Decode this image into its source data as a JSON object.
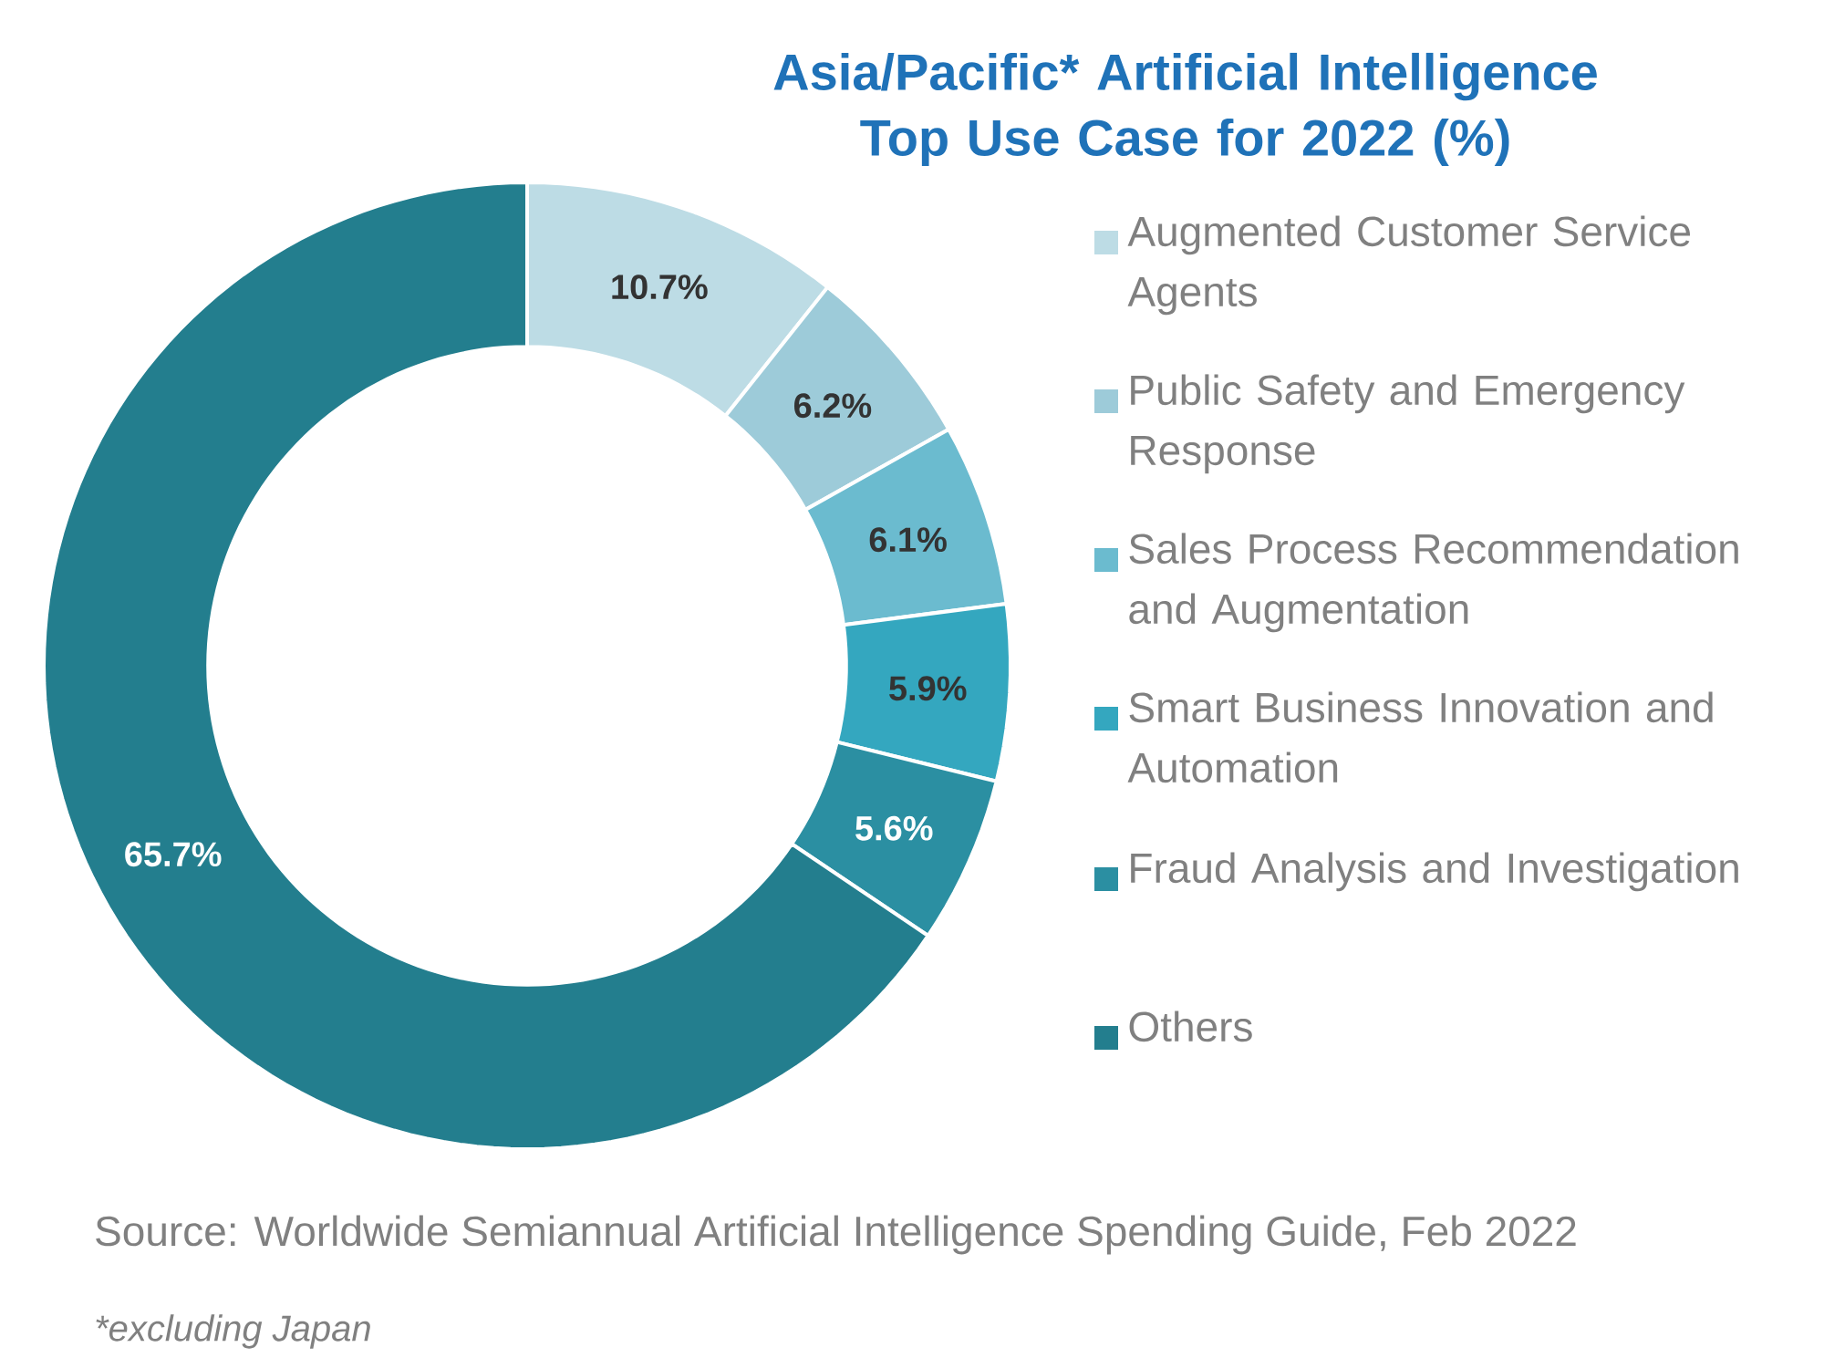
{
  "chart_data": {
    "type": "donut",
    "title": "Asia/Pacific* Artificial Intelligence Top Use Case for 2022 (%)",
    "categories": [
      "Augmented Customer Service Agents",
      "Public Safety and Emergency Response",
      "Sales Process Recommendation and Augmentation",
      "Smart Business Innovation and Automation",
      "Fraud Analysis and Investigation",
      "Others"
    ],
    "values": [
      10.7,
      6.2,
      6.1,
      5.9,
      5.6,
      65.7
    ],
    "value_labels": [
      "10.7%",
      "6.2%",
      "6.1%",
      "5.9%",
      "5.6%",
      "65.7%"
    ],
    "colors": [
      "#bddce5",
      "#9dcbd9",
      "#6bbbcf",
      "#34a7bf",
      "#2b8fa2",
      "#237e8e"
    ],
    "legend": "right",
    "annotations": [
      "Source:  Worldwide Semiannual Artificial Intelligence Spending Guide, Feb 2022",
      "*excluding Japan"
    ]
  }
}
